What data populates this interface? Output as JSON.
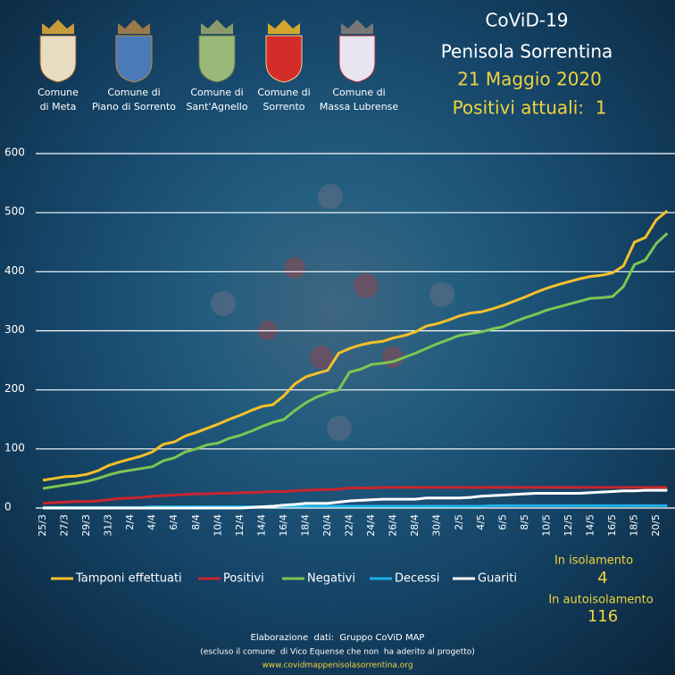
{
  "header": {
    "title": "CoViD-19",
    "subtitle": "Penisola Sorrentina",
    "date": "21 Maggio 2020",
    "status": "Positivi attuali:  1"
  },
  "comuni": [
    {
      "lines": [
        "Comune",
        "di Meta"
      ]
    },
    {
      "lines": [
        "Comune di",
        "Piano di Sorrento"
      ]
    },
    {
      "lines": [
        "Comune di",
        "Sant'Agnello"
      ]
    },
    {
      "lines": [
        "Comune di",
        "Sorrento"
      ]
    },
    {
      "lines": [
        "Comune di",
        "Massa Lubrense"
      ]
    }
  ],
  "chart_data": {
    "type": "line",
    "categories": [
      "25/3",
      null,
      "27/3",
      null,
      "29/3",
      null,
      "31/3",
      null,
      "2/4",
      null,
      "4/4",
      null,
      "6/4",
      null,
      "8/4",
      null,
      "10/4",
      null,
      "12/4",
      null,
      "14/4",
      null,
      "16/4",
      null,
      "18/4",
      null,
      "20/4",
      null,
      "22/4",
      null,
      "24/4",
      null,
      "26/4",
      null,
      "28/4",
      null,
      "30/4",
      null,
      "2/5",
      null,
      "4/5",
      null,
      "6/5",
      null,
      "8/5",
      null,
      "10/5",
      null,
      "12/5",
      null,
      "14/5",
      null,
      "16/5",
      null,
      "18/5",
      null,
      "20/5",
      null
    ],
    "series": [
      {
        "name": "Tamponi effettuati",
        "color": "#f5c02a",
        "values": [
          47,
          50,
          53,
          54,
          57,
          63,
          72,
          78,
          83,
          88,
          95,
          108,
          112,
          122,
          128,
          135,
          142,
          150,
          157,
          165,
          172,
          175,
          190,
          210,
          222,
          228,
          233,
          262,
          270,
          276,
          280,
          282,
          288,
          292,
          298,
          308,
          312,
          318,
          325,
          330,
          332,
          337,
          343,
          350,
          357,
          365,
          372,
          378,
          383,
          388,
          392,
          394,
          398,
          410,
          450,
          458,
          488,
          503
        ]
      },
      {
        "name": "Positivi",
        "color": "#c8262e",
        "values": [
          8,
          9,
          10,
          11,
          11,
          12,
          14,
          16,
          17,
          18,
          20,
          21,
          22,
          23,
          24,
          24,
          25,
          25,
          26,
          26,
          27,
          28,
          28,
          29,
          30,
          31,
          31,
          32,
          34,
          34,
          34,
          35,
          35,
          35,
          35,
          35,
          35,
          35,
          35,
          35,
          35,
          35,
          35,
          35,
          35,
          35,
          35,
          35,
          35,
          35,
          35,
          35,
          35,
          35,
          35,
          35,
          35,
          35
        ]
      },
      {
        "name": "Negativi",
        "color": "#7dc653",
        "values": [
          33,
          36,
          39,
          42,
          45,
          50,
          56,
          61,
          64,
          67,
          70,
          80,
          85,
          95,
          100,
          107,
          110,
          118,
          123,
          130,
          138,
          145,
          150,
          165,
          178,
          188,
          195,
          200,
          230,
          235,
          243,
          245,
          248,
          255,
          262,
          270,
          278,
          285,
          292,
          295,
          298,
          303,
          307,
          315,
          322,
          328,
          335,
          340,
          345,
          350,
          355,
          356,
          358,
          375,
          412,
          420,
          448,
          465
        ]
      },
      {
        "name": "Decessi",
        "color": "#1fb0e6",
        "values": [
          1,
          1,
          1,
          1,
          1,
          1,
          1,
          1,
          1,
          1,
          2,
          2,
          2,
          2,
          2,
          2,
          2,
          2,
          2,
          2,
          2,
          3,
          3,
          3,
          3,
          3,
          3,
          3,
          3,
          3,
          3,
          3,
          3,
          3,
          3,
          3,
          3,
          3,
          3,
          3,
          3,
          4,
          4,
          4,
          4,
          4,
          4,
          4,
          4,
          4,
          4,
          4,
          4,
          4,
          4,
          4,
          4,
          4
        ]
      },
      {
        "name": "Guariti",
        "color": "#ffffff",
        "values": [
          0,
          0,
          0,
          0,
          0,
          0,
          0,
          0,
          0,
          0,
          0,
          0,
          0,
          0,
          0,
          0,
          0,
          0,
          0,
          1,
          2,
          3,
          5,
          6,
          8,
          8,
          8,
          10,
          12,
          13,
          14,
          15,
          15,
          15,
          15,
          17,
          17,
          17,
          17,
          18,
          20,
          21,
          22,
          23,
          24,
          25,
          25,
          25,
          25,
          25,
          26,
          27,
          28,
          29,
          29,
          30,
          30,
          30
        ]
      }
    ],
    "ylim": [
      0,
      600
    ],
    "yticks": [
      0,
      100,
      200,
      300,
      400,
      500,
      600
    ],
    "grid": true
  },
  "stats": [
    {
      "label": "In isolamento",
      "value": 4
    },
    {
      "label": "In autoisolamento",
      "value": 116
    }
  ],
  "footer": [
    "Elaborazione  dati:  Gruppo CoViD MAP",
    "(escluso il comune  di Vico Equense che non  ha aderito al progetto)",
    "www.covidmappenisolasorrentina.org"
  ]
}
